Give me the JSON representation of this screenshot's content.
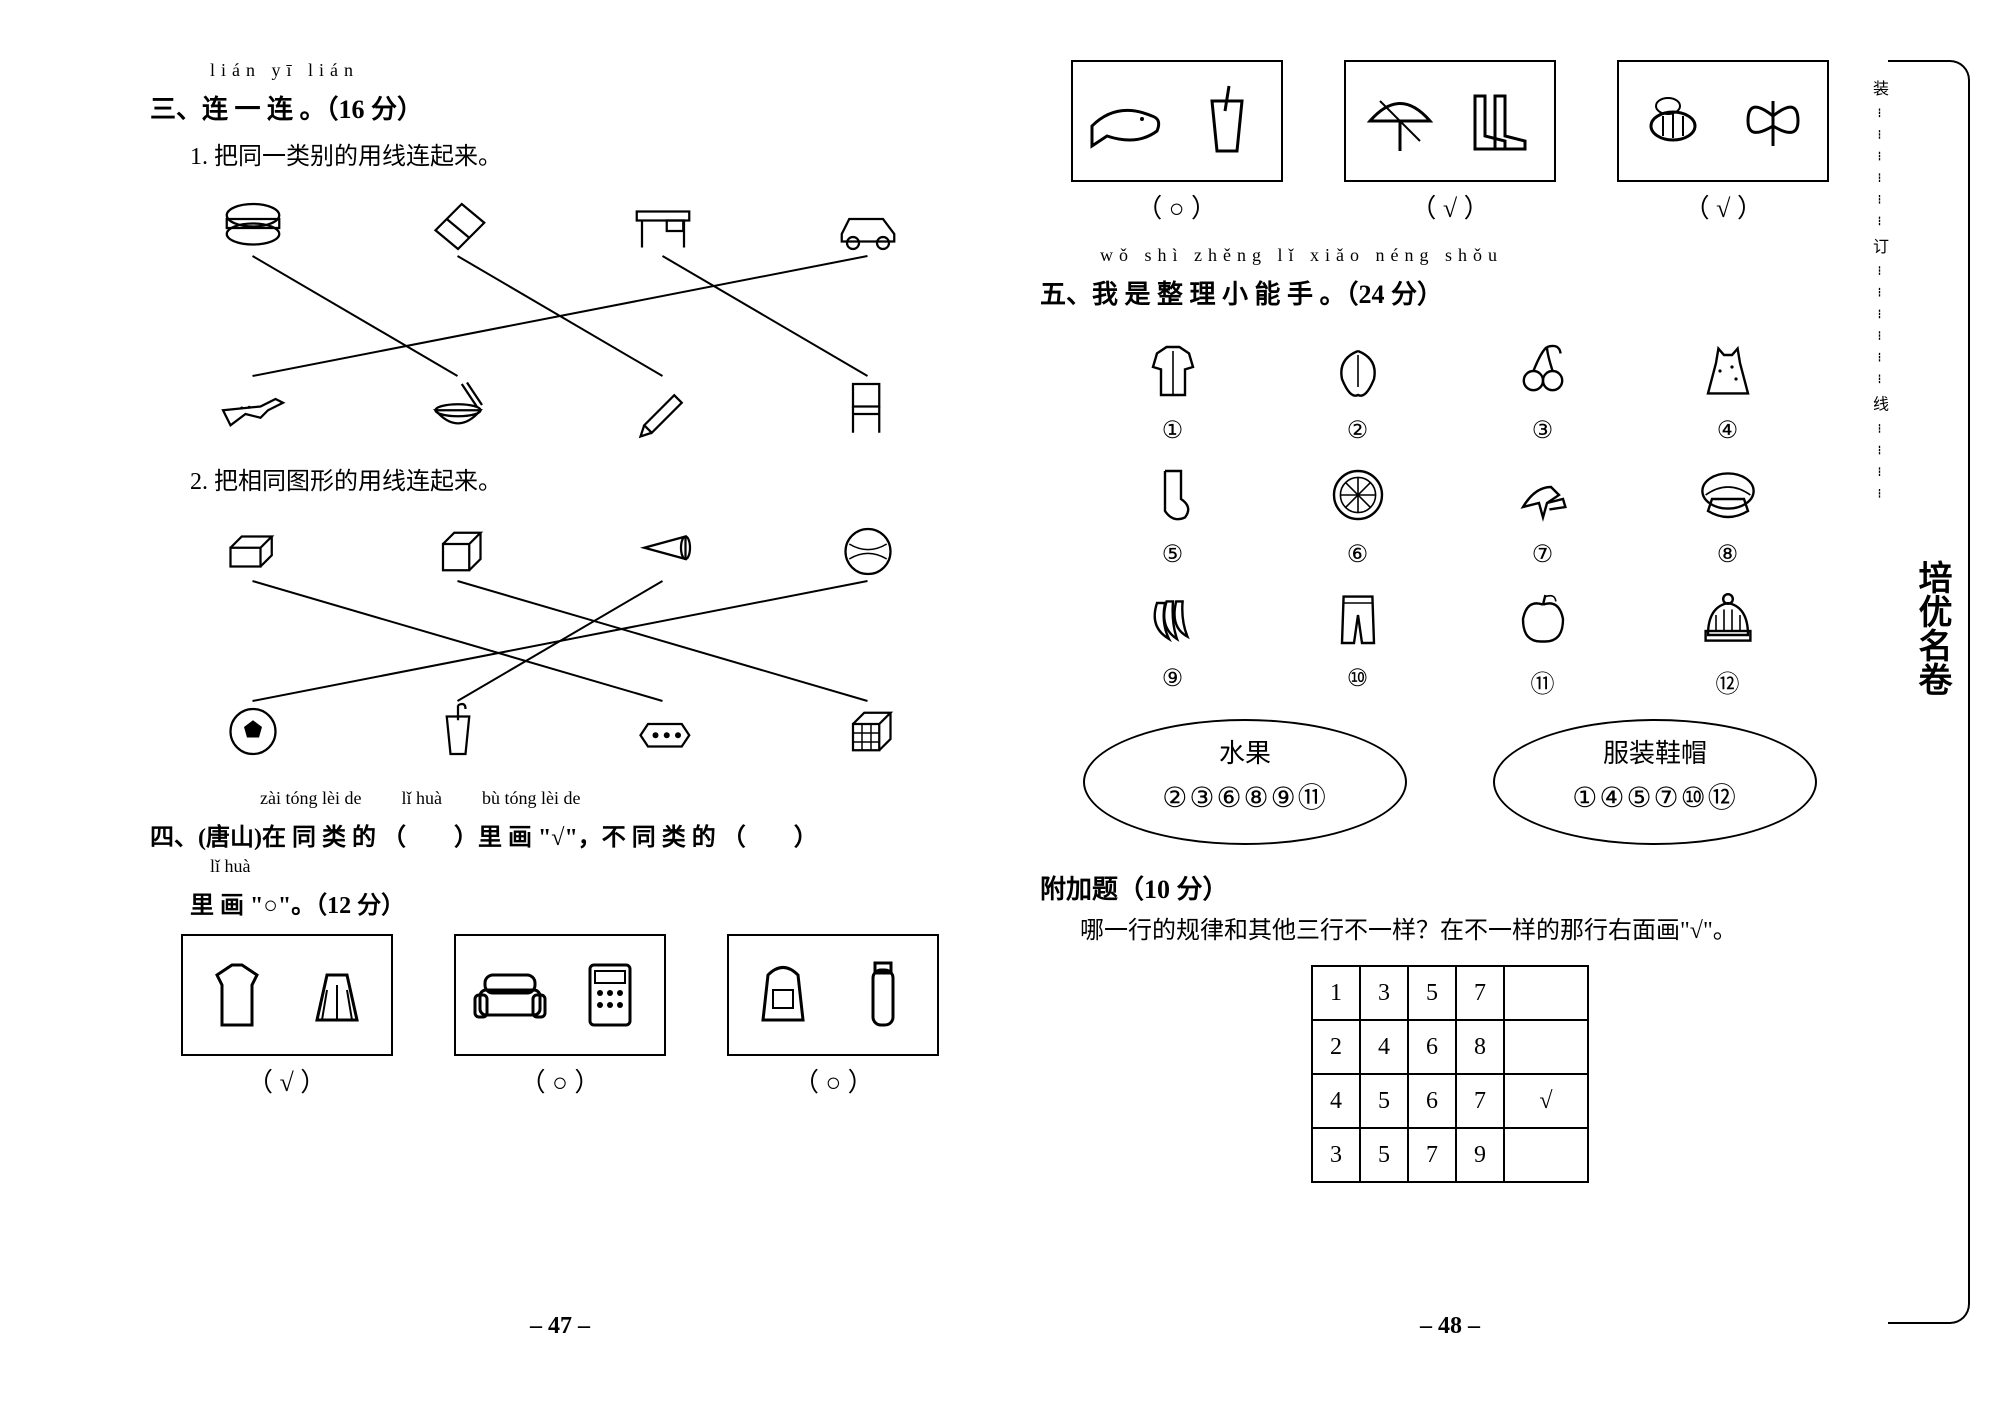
{
  "left": {
    "sec3": {
      "pinyin": "lián  yī  lián",
      "title": "三、连 一 连 。（16 分）",
      "sub1": "1. 把同一类别的用线连起来。",
      "topIcons": [
        "hamburger",
        "eraser",
        "desk",
        "car"
      ],
      "botIcons": [
        "airplane",
        "rice-bowl",
        "pencil",
        "chair"
      ],
      "connections1": [
        [
          0,
          1
        ],
        [
          1,
          2
        ],
        [
          2,
          3
        ],
        [
          3,
          0
        ]
      ],
      "sub2": "2. 把相同图形的用线连起来。",
      "topShapes": [
        "cuboid",
        "cube",
        "cone",
        "sphere-ball"
      ],
      "botShapes": [
        "soccer-ball",
        "cup",
        "gold-bar",
        "rubiks-cube"
      ],
      "connections2": [
        [
          0,
          2
        ],
        [
          1,
          3
        ],
        [
          2,
          1
        ],
        [
          3,
          0
        ]
      ]
    },
    "sec4": {
      "pinyin1": "zài  tóng  lèi  de",
      "pinyin2": "lǐ  huà",
      "pinyin3": "bù  tóng  lèi  de",
      "title": "四、(唐山)在 同 类 的 （　　）里 画 \"√\"，不 同 类 的 （　　）",
      "pinyin4": "lǐ  huà",
      "title2": "里 画 \"○\"。（12 分）",
      "boxes": [
        {
          "icons": [
            "sweater",
            "skirt"
          ],
          "answer": "√"
        },
        {
          "icons": [
            "sofa",
            "calculator"
          ],
          "answer": "○"
        },
        {
          "icons": [
            "backpack",
            "thermos"
          ],
          "answer": "○"
        }
      ]
    },
    "pageNum": "– 47 –"
  },
  "right": {
    "topBoxes": [
      {
        "icons": [
          "whale",
          "drink-cup"
        ],
        "answer": "○"
      },
      {
        "icons": [
          "umbrella",
          "rain-boots"
        ],
        "answer": "√"
      },
      {
        "icons": [
          "bee",
          "butterfly"
        ],
        "answer": "√"
      }
    ],
    "sec5": {
      "pinyin": "wǒ  shì  zhěng  lǐ  xiǎo  néng  shǒu",
      "title": "五、我 是 整 理 小 能 手 。（24 分）",
      "items": [
        {
          "icon": "jacket",
          "num": "①"
        },
        {
          "icon": "peach",
          "num": "②"
        },
        {
          "icon": "cherries",
          "num": "③"
        },
        {
          "icon": "dress",
          "num": "④"
        },
        {
          "icon": "sock",
          "num": "⑤"
        },
        {
          "icon": "orange-slice",
          "num": "⑥"
        },
        {
          "icon": "high-heels",
          "num": "⑦"
        },
        {
          "icon": "watermelon",
          "num": "⑧"
        },
        {
          "icon": "bananas",
          "num": "⑨"
        },
        {
          "icon": "pants",
          "num": "⑩"
        },
        {
          "icon": "apple",
          "num": "⑪"
        },
        {
          "icon": "knit-hat",
          "num": "⑫"
        }
      ],
      "ovals": [
        {
          "head": "水果",
          "nums": "②③⑥⑧⑨⑪"
        },
        {
          "head": "服装鞋帽",
          "nums": "①④⑤⑦⑩⑫"
        }
      ]
    },
    "bonus": {
      "title": "附加题（10 分）",
      "prompt": "哪一行的规律和其他三行不一样？在不一样的那行右面画\"√\"。",
      "rows": [
        {
          "cells": [
            "1",
            "3",
            "5",
            "7"
          ],
          "ans": ""
        },
        {
          "cells": [
            "2",
            "4",
            "6",
            "8"
          ],
          "ans": ""
        },
        {
          "cells": [
            "4",
            "5",
            "6",
            "7"
          ],
          "ans": "√"
        },
        {
          "cells": [
            "3",
            "5",
            "7",
            "9"
          ],
          "ans": ""
        }
      ]
    },
    "pageNum": "– 48 –"
  },
  "margin": {
    "brand": "培优名卷",
    "dots": "装┄┄┄┄┄┄订┄┄┄┄┄┄线┄┄┄┄"
  }
}
